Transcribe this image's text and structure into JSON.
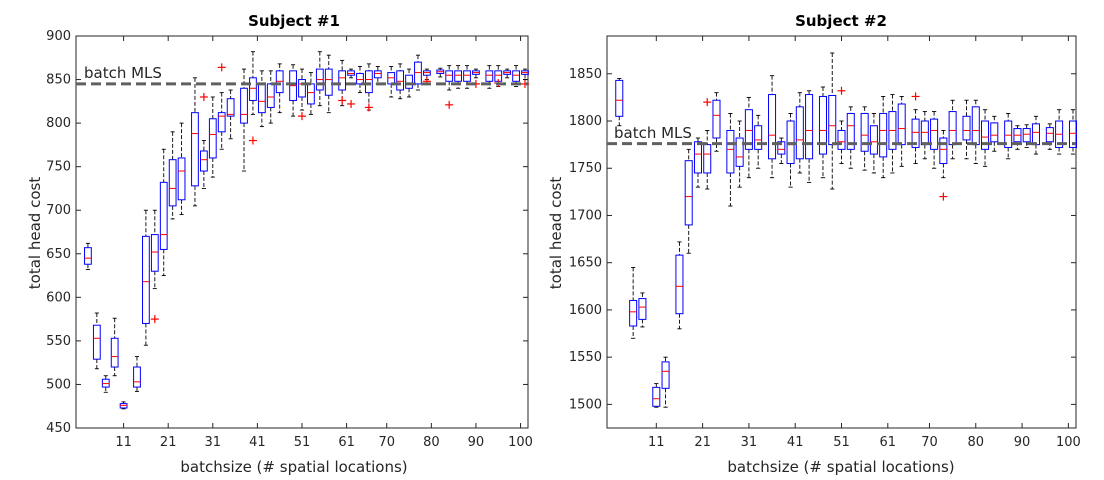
{
  "colors": {
    "box": "#0000ff",
    "median": "#ff0000",
    "outlier": "#ff0000",
    "whisker": "#000000",
    "reference": "#606060"
  },
  "chart_data": [
    {
      "type": "box",
      "title": "Subject #1",
      "xlabel": "batchsize (# spatial locations)",
      "ylabel": "total head cost",
      "ylim": [
        450,
        900
      ],
      "xlim": [
        1,
        101
      ],
      "yticks": [
        450,
        500,
        550,
        600,
        650,
        700,
        750,
        800,
        850,
        900
      ],
      "xtick_labels": [
        "11",
        "21",
        "31",
        "41",
        "51",
        "61",
        "70",
        "80",
        "90",
        "100"
      ],
      "xtick_values": [
        11,
        21,
        31,
        41,
        51,
        61,
        70,
        80,
        90,
        100
      ],
      "reference": {
        "label": "batch MLS",
        "value": 845
      },
      "boxes": [
        {
          "x": 3,
          "q1": 638,
          "med": 645,
          "q3": 657,
          "lo": 632,
          "hi": 662
        },
        {
          "x": 5,
          "q1": 529,
          "med": 553,
          "q3": 568,
          "lo": 518,
          "hi": 582
        },
        {
          "x": 7,
          "q1": 497,
          "med": 501,
          "q3": 506,
          "lo": 491,
          "hi": 510
        },
        {
          "x": 9,
          "q1": 520,
          "med": 532,
          "q3": 553,
          "lo": 510,
          "hi": 576
        },
        {
          "x": 11,
          "q1": 473,
          "med": 476,
          "q3": 478,
          "lo": 472,
          "hi": 480
        },
        {
          "x": 14,
          "q1": 497,
          "med": 503,
          "q3": 520,
          "lo": 492,
          "hi": 532
        },
        {
          "x": 16,
          "q1": 570,
          "med": 618,
          "q3": 670,
          "lo": 545,
          "hi": 700,
          "out": []
        },
        {
          "x": 18,
          "q1": 630,
          "med": 652,
          "q3": 672,
          "lo": 610,
          "hi": 700,
          "out": [
            575
          ]
        },
        {
          "x": 20,
          "q1": 655,
          "med": 672,
          "q3": 732,
          "lo": 625,
          "hi": 770
        },
        {
          "x": 22,
          "q1": 705,
          "med": 725,
          "q3": 758,
          "lo": 690,
          "hi": 790
        },
        {
          "x": 24,
          "q1": 712,
          "med": 745,
          "q3": 760,
          "lo": 695,
          "hi": 800
        },
        {
          "x": 27,
          "q1": 728,
          "med": 788,
          "q3": 812,
          "lo": 705,
          "hi": 852
        },
        {
          "x": 29,
          "q1": 745,
          "med": 758,
          "q3": 768,
          "lo": 725,
          "hi": 780,
          "out": [
            830
          ]
        },
        {
          "x": 31,
          "q1": 760,
          "med": 787,
          "q3": 805,
          "lo": 738,
          "hi": 830
        },
        {
          "x": 33,
          "q1": 790,
          "med": 808,
          "q3": 812,
          "lo": 770,
          "hi": 835,
          "out": [
            864
          ]
        },
        {
          "x": 35,
          "q1": 808,
          "med": 810,
          "q3": 828,
          "lo": 782,
          "hi": 838
        },
        {
          "x": 38,
          "q1": 800,
          "med": 810,
          "q3": 840,
          "lo": 745,
          "hi": 862
        },
        {
          "x": 40,
          "q1": 826,
          "med": 840,
          "q3": 852,
          "lo": 810,
          "hi": 882,
          "out": [
            780
          ]
        },
        {
          "x": 42,
          "q1": 812,
          "med": 825,
          "q3": 845,
          "lo": 796,
          "hi": 860
        },
        {
          "x": 44,
          "q1": 818,
          "med": 830,
          "q3": 845,
          "lo": 800,
          "hi": 860
        },
        {
          "x": 46,
          "q1": 835,
          "med": 848,
          "q3": 860,
          "lo": 812,
          "hi": 868
        },
        {
          "x": 49,
          "q1": 826,
          "med": 843,
          "q3": 860,
          "lo": 808,
          "hi": 867
        },
        {
          "x": 51,
          "q1": 830,
          "med": 845,
          "q3": 850,
          "lo": 815,
          "hi": 862,
          "out": [
            808
          ]
        },
        {
          "x": 53,
          "q1": 822,
          "med": 835,
          "q3": 845,
          "lo": 810,
          "hi": 858
        },
        {
          "x": 55,
          "q1": 838,
          "med": 850,
          "q3": 862,
          "lo": 820,
          "hi": 882
        },
        {
          "x": 57,
          "q1": 832,
          "med": 850,
          "q3": 862,
          "lo": 812,
          "hi": 878
        },
        {
          "x": 60,
          "q1": 838,
          "med": 852,
          "q3": 860,
          "lo": 820,
          "hi": 872,
          "out": [
            826
          ]
        },
        {
          "x": 62,
          "q1": 855,
          "med": 857,
          "q3": 860,
          "lo": 852,
          "hi": 862,
          "out": [
            822
          ]
        },
        {
          "x": 64,
          "q1": 845,
          "med": 850,
          "q3": 857,
          "lo": 835,
          "hi": 865
        },
        {
          "x": 66,
          "q1": 835,
          "med": 850,
          "q3": 860,
          "lo": 815,
          "hi": 868,
          "out": [
            818
          ]
        },
        {
          "x": 68,
          "q1": 852,
          "med": 857,
          "q3": 860,
          "lo": 845,
          "hi": 865
        },
        {
          "x": 71,
          "q1": 845,
          "med": 852,
          "q3": 858,
          "lo": 830,
          "hi": 865
        },
        {
          "x": 73,
          "q1": 838,
          "med": 848,
          "q3": 860,
          "lo": 828,
          "hi": 868
        },
        {
          "x": 75,
          "q1": 840,
          "med": 845,
          "q3": 855,
          "lo": 830,
          "hi": 862
        },
        {
          "x": 77,
          "q1": 845,
          "med": 858,
          "q3": 870,
          "lo": 838,
          "hi": 878
        },
        {
          "x": 79,
          "q1": 855,
          "med": 858,
          "q3": 860,
          "lo": 850,
          "hi": 862,
          "out": [
            848
          ]
        },
        {
          "x": 82,
          "q1": 857,
          "med": 859,
          "q3": 861,
          "lo": 853,
          "hi": 863
        },
        {
          "x": 84,
          "q1": 848,
          "med": 855,
          "q3": 860,
          "lo": 838,
          "hi": 866,
          "out": [
            821
          ]
        },
        {
          "x": 86,
          "q1": 848,
          "med": 855,
          "q3": 860,
          "lo": 840,
          "hi": 866
        },
        {
          "x": 88,
          "q1": 848,
          "med": 855,
          "q3": 860,
          "lo": 840,
          "hi": 866
        },
        {
          "x": 90,
          "q1": 856,
          "med": 858,
          "q3": 860,
          "lo": 852,
          "hi": 862,
          "out": [
            845
          ]
        },
        {
          "x": 93,
          "q1": 848,
          "med": 855,
          "q3": 860,
          "lo": 840,
          "hi": 866
        },
        {
          "x": 95,
          "q1": 848,
          "med": 855,
          "q3": 860,
          "lo": 842,
          "hi": 866,
          "out": [
            846
          ]
        },
        {
          "x": 97,
          "q1": 856,
          "med": 858,
          "q3": 860,
          "lo": 852,
          "hi": 862
        },
        {
          "x": 99,
          "q1": 848,
          "med": 855,
          "q3": 860,
          "lo": 842,
          "hi": 866
        },
        {
          "x": 101,
          "q1": 856,
          "med": 858,
          "q3": 860,
          "lo": 850,
          "hi": 862,
          "out": [
            845
          ]
        }
      ]
    },
    {
      "type": "box",
      "title": "Subject #2",
      "xlabel": "batchsize (# spatial locations)",
      "ylabel": "total head cost",
      "ylim": [
        1475,
        1890
      ],
      "xlim": [
        1,
        101
      ],
      "yticks": [
        1500,
        1550,
        1600,
        1650,
        1700,
        1750,
        1800,
        1850
      ],
      "xtick_labels": [
        "11",
        "21",
        "31",
        "41",
        "51",
        "61",
        "70",
        "80",
        "90",
        "100"
      ],
      "xtick_values": [
        11,
        21,
        31,
        41,
        51,
        61,
        70,
        80,
        90,
        100
      ],
      "reference": {
        "label": "batch MLS",
        "value": 1776
      },
      "boxes": [
        {
          "x": 3,
          "q1": 1805,
          "med": 1822,
          "q3": 1843,
          "lo": 1795,
          "hi": 1845
        },
        {
          "x": 6,
          "q1": 1583,
          "med": 1598,
          "q3": 1610,
          "lo": 1570,
          "hi": 1645
        },
        {
          "x": 8,
          "q1": 1590,
          "med": 1603,
          "q3": 1612,
          "lo": 1582,
          "hi": 1618
        },
        {
          "x": 11,
          "q1": 1498,
          "med": 1506,
          "q3": 1518,
          "lo": 1497,
          "hi": 1522
        },
        {
          "x": 13,
          "q1": 1517,
          "med": 1535,
          "q3": 1545,
          "lo": 1497,
          "hi": 1550
        },
        {
          "x": 16,
          "q1": 1596,
          "med": 1625,
          "q3": 1658,
          "lo": 1580,
          "hi": 1672
        },
        {
          "x": 18,
          "q1": 1690,
          "med": 1720,
          "q3": 1758,
          "lo": 1660,
          "hi": 1770
        },
        {
          "x": 20,
          "q1": 1745,
          "med": 1765,
          "q3": 1778,
          "lo": 1730,
          "hi": 1782
        },
        {
          "x": 22,
          "q1": 1745,
          "med": 1765,
          "q3": 1775,
          "lo": 1728,
          "hi": 1790,
          "out": [
            1820
          ]
        },
        {
          "x": 24,
          "q1": 1782,
          "med": 1806,
          "q3": 1822,
          "lo": 1768,
          "hi": 1830
        },
        {
          "x": 27,
          "q1": 1745,
          "med": 1770,
          "q3": 1790,
          "lo": 1710,
          "hi": 1808
        },
        {
          "x": 29,
          "q1": 1752,
          "med": 1762,
          "q3": 1782,
          "lo": 1730,
          "hi": 1800
        },
        {
          "x": 31,
          "q1": 1770,
          "med": 1790,
          "q3": 1812,
          "lo": 1740,
          "hi": 1825
        },
        {
          "x": 33,
          "q1": 1770,
          "med": 1780,
          "q3": 1795,
          "lo": 1750,
          "hi": 1806
        },
        {
          "x": 36,
          "q1": 1760,
          "med": 1785,
          "q3": 1828,
          "lo": 1740,
          "hi": 1848
        },
        {
          "x": 38,
          "q1": 1765,
          "med": 1770,
          "q3": 1778,
          "lo": 1755,
          "hi": 1782
        },
        {
          "x": 40,
          "q1": 1755,
          "med": 1775,
          "q3": 1800,
          "lo": 1730,
          "hi": 1808
        },
        {
          "x": 42,
          "q1": 1760,
          "med": 1780,
          "q3": 1815,
          "lo": 1745,
          "hi": 1830
        },
        {
          "x": 44,
          "q1": 1760,
          "med": 1790,
          "q3": 1828,
          "lo": 1735,
          "hi": 1832
        },
        {
          "x": 47,
          "q1": 1765,
          "med": 1790,
          "q3": 1826,
          "lo": 1740,
          "hi": 1836
        },
        {
          "x": 49,
          "q1": 1775,
          "med": 1795,
          "q3": 1827,
          "lo": 1728,
          "hi": 1872
        },
        {
          "x": 51,
          "q1": 1770,
          "med": 1778,
          "q3": 1790,
          "lo": 1755,
          "hi": 1800,
          "out": [
            1832
          ]
        },
        {
          "x": 53,
          "q1": 1770,
          "med": 1795,
          "q3": 1808,
          "lo": 1750,
          "hi": 1815
        },
        {
          "x": 56,
          "q1": 1768,
          "med": 1785,
          "q3": 1808,
          "lo": 1748,
          "hi": 1815
        },
        {
          "x": 58,
          "q1": 1765,
          "med": 1778,
          "q3": 1795,
          "lo": 1745,
          "hi": 1808
        },
        {
          "x": 60,
          "q1": 1762,
          "med": 1790,
          "q3": 1808,
          "lo": 1740,
          "hi": 1826
        },
        {
          "x": 62,
          "q1": 1770,
          "med": 1790,
          "q3": 1810,
          "lo": 1745,
          "hi": 1828
        },
        {
          "x": 64,
          "q1": 1775,
          "med": 1792,
          "q3": 1818,
          "lo": 1752,
          "hi": 1826
        },
        {
          "x": 67,
          "q1": 1772,
          "med": 1788,
          "q3": 1802,
          "lo": 1755,
          "hi": 1812,
          "out": [
            1826
          ]
        },
        {
          "x": 69,
          "q1": 1775,
          "med": 1788,
          "q3": 1800,
          "lo": 1760,
          "hi": 1810
        },
        {
          "x": 71,
          "q1": 1770,
          "med": 1790,
          "q3": 1802,
          "lo": 1750,
          "hi": 1810
        },
        {
          "x": 73,
          "q1": 1755,
          "med": 1770,
          "q3": 1782,
          "lo": 1740,
          "hi": 1790,
          "out": [
            1720
          ]
        },
        {
          "x": 75,
          "q1": 1775,
          "med": 1790,
          "q3": 1810,
          "lo": 1760,
          "hi": 1822
        },
        {
          "x": 78,
          "q1": 1780,
          "med": 1790,
          "q3": 1805,
          "lo": 1760,
          "hi": 1822
        },
        {
          "x": 80,
          "q1": 1775,
          "med": 1790,
          "q3": 1815,
          "lo": 1755,
          "hi": 1822
        },
        {
          "x": 82,
          "q1": 1770,
          "med": 1783,
          "q3": 1800,
          "lo": 1752,
          "hi": 1812
        },
        {
          "x": 84,
          "q1": 1778,
          "med": 1785,
          "q3": 1798,
          "lo": 1768,
          "hi": 1805
        },
        {
          "x": 87,
          "q1": 1772,
          "med": 1785,
          "q3": 1800,
          "lo": 1760,
          "hi": 1808
        },
        {
          "x": 89,
          "q1": 1778,
          "med": 1785,
          "q3": 1792,
          "lo": 1770,
          "hi": 1795
        },
        {
          "x": 91,
          "q1": 1778,
          "med": 1786,
          "q3": 1792,
          "lo": 1772,
          "hi": 1796
        },
        {
          "x": 93,
          "q1": 1775,
          "med": 1788,
          "q3": 1797,
          "lo": 1765,
          "hi": 1805
        },
        {
          "x": 96,
          "q1": 1778,
          "med": 1787,
          "q3": 1793,
          "lo": 1770,
          "hi": 1797
        },
        {
          "x": 98,
          "q1": 1772,
          "med": 1786,
          "q3": 1800,
          "lo": 1765,
          "hi": 1812
        },
        {
          "x": 101,
          "q1": 1772,
          "med": 1787,
          "q3": 1800,
          "lo": 1765,
          "hi": 1812
        }
      ]
    }
  ]
}
